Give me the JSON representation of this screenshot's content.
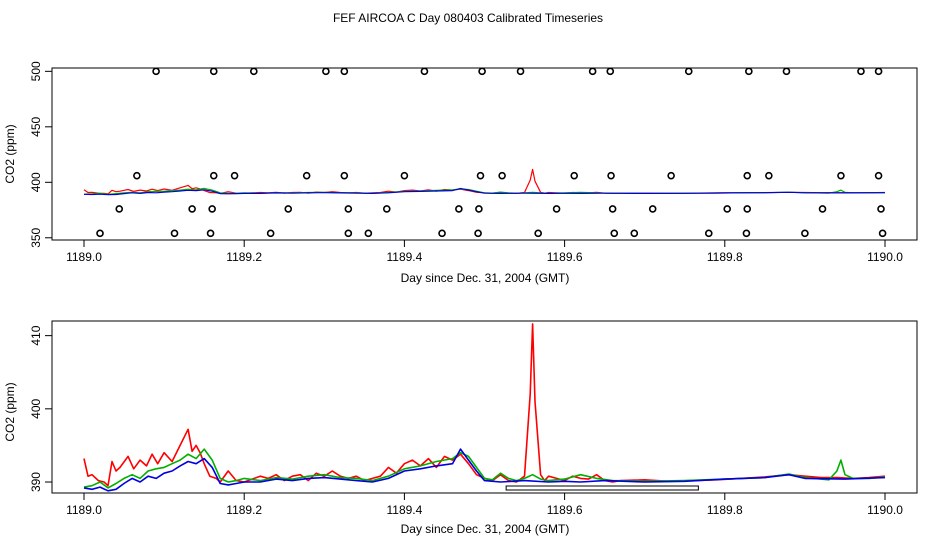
{
  "chart_data": [
    {
      "type": "line",
      "panel": "top",
      "title": "FEF AIRCOA C  Day 080403  Calibrated Timeseries",
      "xlabel": "Day since Dec. 31, 2004 (GMT)",
      "ylabel": "CO2 (ppm)",
      "xlim": [
        1188.995,
        1190.0
      ],
      "ylim": [
        348,
        503
      ],
      "xticks": [
        1189.0,
        1189.2,
        1189.4,
        1189.6,
        1189.8,
        1190.0
      ],
      "xtick_labels": [
        "1189.0",
        "1189.2",
        "1189.4",
        "1189.6",
        "1189.8",
        "1190.0"
      ],
      "yticks": [
        350,
        400,
        450,
        500
      ],
      "ytick_labels": [
        "350",
        "400",
        "450",
        "500"
      ],
      "calibration_points": {
        "x_500": [
          1189.09,
          1189.162,
          1189.212,
          1189.302,
          1189.325,
          1189.425,
          1189.497,
          1189.545,
          1189.635,
          1189.657,
          1189.755,
          1189.83,
          1189.877,
          1189.97,
          1189.992
        ],
        "x_406": [
          1189.066,
          1189.162,
          1189.188,
          1189.278,
          1189.325,
          1189.4,
          1189.495,
          1189.522,
          1189.612,
          1189.658,
          1189.733,
          1189.828,
          1189.855,
          1189.945,
          1189.992
        ],
        "x_376": [
          1189.044,
          1189.135,
          1189.16,
          1189.255,
          1189.33,
          1189.378,
          1189.468,
          1189.493,
          1189.59,
          1189.66,
          1189.71,
          1189.803,
          1189.828,
          1189.922,
          1189.995
        ],
        "x_354": [
          1189.02,
          1189.113,
          1189.158,
          1189.233,
          1189.33,
          1189.355,
          1189.447,
          1189.492,
          1189.567,
          1189.662,
          1189.687,
          1189.78,
          1189.827,
          1189.9,
          1189.997
        ]
      }
    },
    {
      "type": "line",
      "panel": "bottom",
      "title": "",
      "xlabel": "Day since Dec. 31, 2004 (GMT)",
      "ylabel": "CO2 (ppm)",
      "xlim": [
        1188.995,
        1190.0
      ],
      "ylim": [
        388.5,
        412
      ],
      "xticks": [
        1189.0,
        1189.2,
        1189.4,
        1189.6,
        1189.8,
        1190.0
      ],
      "xtick_labels": [
        "1189.0",
        "1189.2",
        "1189.4",
        "1189.6",
        "1189.8",
        "1190.0"
      ],
      "yticks": [
        390,
        400,
        410
      ],
      "ytick_labels": [
        "390",
        "400",
        "410"
      ],
      "flag_bar": {
        "x_start": 1189.527,
        "x_end": 1189.767
      },
      "series": [
        {
          "name": "red",
          "color": "#ff0000",
          "x": [
            1189.0,
            1189.005,
            1189.01,
            1189.018,
            1189.025,
            1189.03,
            1189.035,
            1189.04,
            1189.045,
            1189.055,
            1189.062,
            1189.07,
            1189.078,
            1189.085,
            1189.092,
            1189.1,
            1189.11,
            1189.12,
            1189.13,
            1189.135,
            1189.14,
            1189.145,
            1189.15,
            1189.157,
            1189.165,
            1189.17,
            1189.18,
            1189.19,
            1189.2,
            1189.21,
            1189.22,
            1189.23,
            1189.24,
            1189.25,
            1189.26,
            1189.27,
            1189.28,
            1189.29,
            1189.3,
            1189.31,
            1189.32,
            1189.33,
            1189.34,
            1189.35,
            1189.36,
            1189.37,
            1189.38,
            1189.39,
            1189.4,
            1189.41,
            1189.42,
            1189.43,
            1189.44,
            1189.45,
            1189.46,
            1189.47,
            1189.48,
            1189.49,
            1189.5,
            1189.51,
            1189.52,
            1189.53,
            1189.54,
            1189.55,
            1189.557,
            1189.56,
            1189.563,
            1189.57,
            1189.575,
            1189.58,
            1189.59,
            1189.6,
            1189.61,
            1189.62,
            1189.63,
            1189.64,
            1189.65,
            1189.66,
            1189.67,
            1189.7,
            1189.73,
            1189.76,
            1189.79,
            1189.82,
            1189.85,
            1189.88,
            1189.9,
            1189.92,
            1189.94,
            1189.96,
            1189.98,
            1190.0
          ],
          "y": [
            393.2,
            390.8,
            391.0,
            390.2,
            390.0,
            389.5,
            392.8,
            391.5,
            392.0,
            393.5,
            391.8,
            393.0,
            392.2,
            393.8,
            392.5,
            394.0,
            392.8,
            395.0,
            397.2,
            394.2,
            395.0,
            394.0,
            392.5,
            390.8,
            390.5,
            390.0,
            391.5,
            390.2,
            390.0,
            390.4,
            390.8,
            390.5,
            391.0,
            390.2,
            390.8,
            391.0,
            390.2,
            391.2,
            390.8,
            391.5,
            390.8,
            390.5,
            390.8,
            390.2,
            390.5,
            390.8,
            392.0,
            391.2,
            392.5,
            393.0,
            392.2,
            393.2,
            392.0,
            393.5,
            393.0,
            393.8,
            392.5,
            391.0,
            390.5,
            390.2,
            391.0,
            390.2,
            390.0,
            390.8,
            402.0,
            411.6,
            401.0,
            391.0,
            390.2,
            390.8,
            390.5,
            390.2,
            390.8,
            390.5,
            390.4,
            391.0,
            390.2,
            390.0,
            390.2,
            390.3,
            390.1,
            390.2,
            390.3,
            390.5,
            390.7,
            391.0,
            390.8,
            390.6,
            390.6,
            390.5,
            390.6,
            390.8
          ]
        },
        {
          "name": "green",
          "color": "#00b000",
          "x": [
            1189.0,
            1189.01,
            1189.02,
            1189.03,
            1189.04,
            1189.05,
            1189.06,
            1189.07,
            1189.08,
            1189.09,
            1189.1,
            1189.11,
            1189.12,
            1189.13,
            1189.14,
            1189.15,
            1189.16,
            1189.17,
            1189.18,
            1189.19,
            1189.2,
            1189.22,
            1189.24,
            1189.26,
            1189.28,
            1189.3,
            1189.32,
            1189.34,
            1189.36,
            1189.38,
            1189.4,
            1189.42,
            1189.44,
            1189.46,
            1189.47,
            1189.48,
            1189.49,
            1189.5,
            1189.51,
            1189.52,
            1189.53,
            1189.54,
            1189.55,
            1189.56,
            1189.57,
            1189.58,
            1189.6,
            1189.62,
            1189.64,
            1189.66,
            1189.7,
            1189.75,
            1189.8,
            1189.85,
            1189.88,
            1189.9,
            1189.93,
            1189.94,
            1189.945,
            1189.95,
            1189.96,
            1189.98,
            1190.0
          ],
          "y": [
            389.3,
            389.5,
            390.0,
            389.2,
            389.8,
            390.5,
            391.0,
            390.5,
            391.5,
            391.8,
            392.0,
            392.5,
            393.0,
            393.8,
            393.2,
            394.5,
            393.0,
            390.5,
            390.0,
            390.2,
            390.5,
            390.2,
            390.6,
            390.4,
            390.8,
            391.0,
            390.6,
            390.5,
            390.2,
            390.8,
            391.8,
            392.2,
            392.8,
            393.2,
            394.0,
            393.5,
            392.0,
            390.5,
            390.3,
            391.2,
            390.5,
            390.2,
            390.5,
            391.0,
            390.4,
            390.2,
            390.4,
            391.0,
            390.5,
            390.2,
            390.1,
            390.2,
            390.4,
            390.6,
            391.1,
            390.6,
            390.3,
            391.5,
            393.0,
            391.0,
            390.5,
            390.5,
            390.7
          ]
        },
        {
          "name": "blue",
          "color": "#0000e0",
          "x": [
            1189.0,
            1189.01,
            1189.02,
            1189.03,
            1189.04,
            1189.05,
            1189.06,
            1189.07,
            1189.08,
            1189.09,
            1189.1,
            1189.11,
            1189.12,
            1189.13,
            1189.14,
            1189.15,
            1189.16,
            1189.17,
            1189.18,
            1189.19,
            1189.2,
            1189.22,
            1189.24,
            1189.26,
            1189.28,
            1189.3,
            1189.32,
            1189.34,
            1189.36,
            1189.38,
            1189.4,
            1189.42,
            1189.44,
            1189.46,
            1189.47,
            1189.48,
            1189.49,
            1189.5,
            1189.52,
            1189.55,
            1189.58,
            1189.6,
            1189.62,
            1189.65,
            1189.7,
            1189.75,
            1189.8,
            1189.85,
            1189.88,
            1189.9,
            1189.95,
            1190.0
          ],
          "y": [
            389.2,
            389.0,
            389.3,
            388.8,
            389.0,
            389.8,
            390.5,
            390.0,
            390.8,
            390.5,
            391.2,
            391.5,
            392.2,
            392.8,
            392.5,
            393.2,
            392.0,
            389.8,
            389.6,
            389.8,
            390.0,
            390.0,
            390.4,
            390.2,
            390.5,
            390.6,
            390.4,
            390.2,
            390.0,
            390.5,
            391.5,
            391.8,
            392.2,
            392.5,
            394.5,
            393.0,
            391.5,
            390.2,
            390.0,
            390.2,
            390.0,
            390.1,
            390.0,
            390.2,
            390.0,
            390.1,
            390.4,
            390.6,
            391.0,
            390.5,
            390.4,
            390.6
          ]
        }
      ]
    }
  ]
}
